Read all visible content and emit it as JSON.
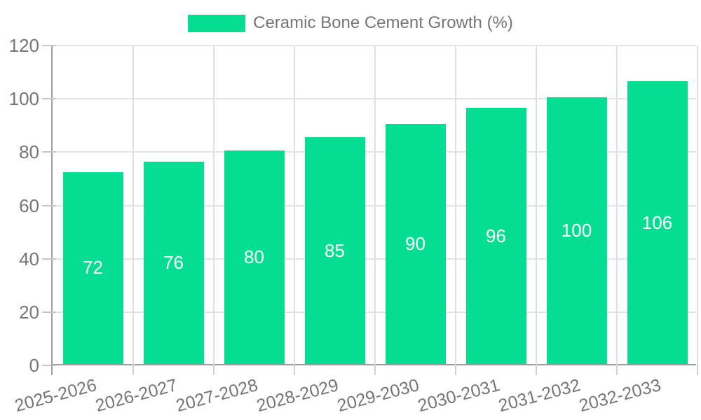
{
  "legend": {
    "label": "Ceramic Bone Cement Growth (%)"
  },
  "colors": {
    "bar": "#05DE91",
    "bar_label": "#ffffff",
    "axis_text": "#757575",
    "axis_line": "#9e9e9e",
    "gridline": "#e4e4e4"
  },
  "chart_data": {
    "type": "bar",
    "title": "Ceramic Bone Cement Growth (%)",
    "categories": [
      "2025-2026",
      "2026-2027",
      "2027-2028",
      "2028-2029",
      "2029-2030",
      "2030-2031",
      "2031-2032",
      "2032-2033"
    ],
    "values": [
      72,
      76,
      80,
      85,
      90,
      96,
      100,
      106
    ],
    "xlabel": "",
    "ylabel": "",
    "ylim": [
      0,
      120
    ],
    "yticks": [
      0,
      20,
      40,
      60,
      80,
      100,
      120
    ],
    "grid": true,
    "legend_position": "top",
    "bar_labels_inside": true,
    "bar_color": "#05DE91"
  }
}
